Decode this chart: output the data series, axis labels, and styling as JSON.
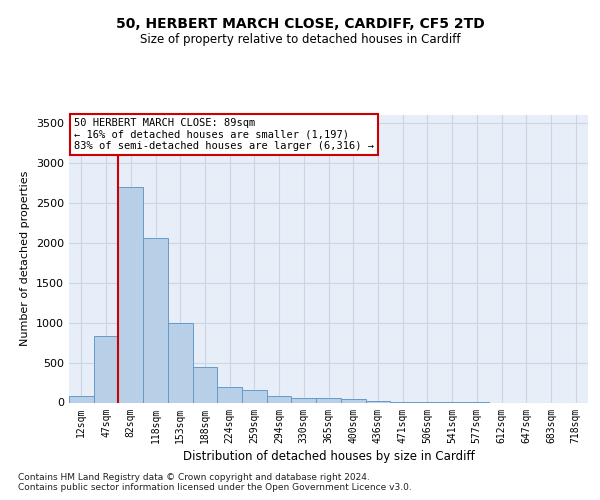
{
  "title1": "50, HERBERT MARCH CLOSE, CARDIFF, CF5 2TD",
  "title2": "Size of property relative to detached houses in Cardiff",
  "xlabel": "Distribution of detached houses by size in Cardiff",
  "ylabel": "Number of detached properties",
  "bar_labels": [
    "12sqm",
    "47sqm",
    "82sqm",
    "118sqm",
    "153sqm",
    "188sqm",
    "224sqm",
    "259sqm",
    "294sqm",
    "330sqm",
    "365sqm",
    "400sqm",
    "436sqm",
    "471sqm",
    "506sqm",
    "541sqm",
    "577sqm",
    "612sqm",
    "647sqm",
    "683sqm",
    "718sqm"
  ],
  "bar_values": [
    80,
    830,
    2700,
    2060,
    1000,
    450,
    200,
    160,
    80,
    55,
    55,
    40,
    25,
    5,
    3,
    2,
    1,
    0,
    0,
    0,
    0
  ],
  "bar_color": "#b8cfe8",
  "bar_edge_color": "#6699cc",
  "grid_color": "#ccd5e5",
  "background_color": "#e8eef8",
  "vline_between": 1,
  "vline_color": "#cc0000",
  "annotation_text": "50 HERBERT MARCH CLOSE: 89sqm\n← 16% of detached houses are smaller (1,197)\n83% of semi-detached houses are larger (6,316) →",
  "annotation_box_color": "#ffffff",
  "annotation_box_edge": "#cc0000",
  "ylim": [
    0,
    3600
  ],
  "yticks": [
    0,
    500,
    1000,
    1500,
    2000,
    2500,
    3000,
    3500
  ],
  "footer": "Contains HM Land Registry data © Crown copyright and database right 2024.\nContains public sector information licensed under the Open Government Licence v3.0."
}
